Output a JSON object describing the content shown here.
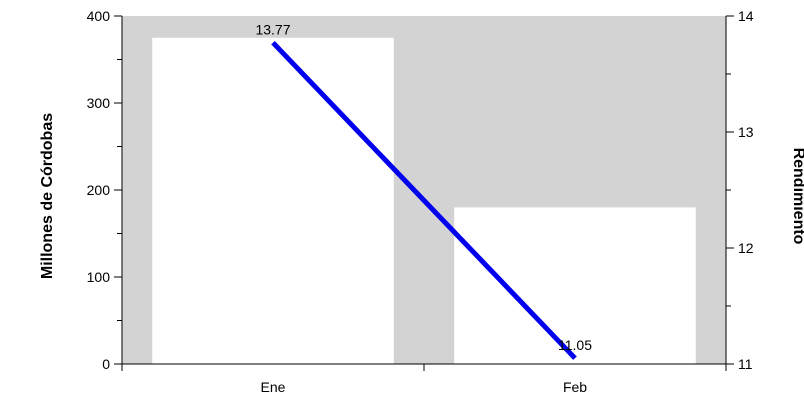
{
  "chart_data": {
    "type": "bar",
    "categories": [
      "Ene",
      "Feb"
    ],
    "series": [
      {
        "type": "bar",
        "axis": "left",
        "values": [
          375,
          180
        ]
      },
      {
        "type": "line",
        "axis": "right",
        "values": [
          13.77,
          11.05
        ],
        "labels": [
          "13.77",
          "11.05"
        ]
      }
    ],
    "ylabel_left": "Millones de Córdobas",
    "ylabel_right": "Rendimiento",
    "ylim_left": [
      0,
      400
    ],
    "ylim_right": [
      11,
      14
    ],
    "yticks_left": [
      "0",
      "100",
      "200",
      "300",
      "400"
    ],
    "yticks_right": [
      "11",
      "12",
      "13",
      "14"
    ],
    "grid": false,
    "colors": {
      "plot_background": "#d3d3d3",
      "bar_fill": "#ffffff",
      "line": "#0000ee"
    }
  }
}
